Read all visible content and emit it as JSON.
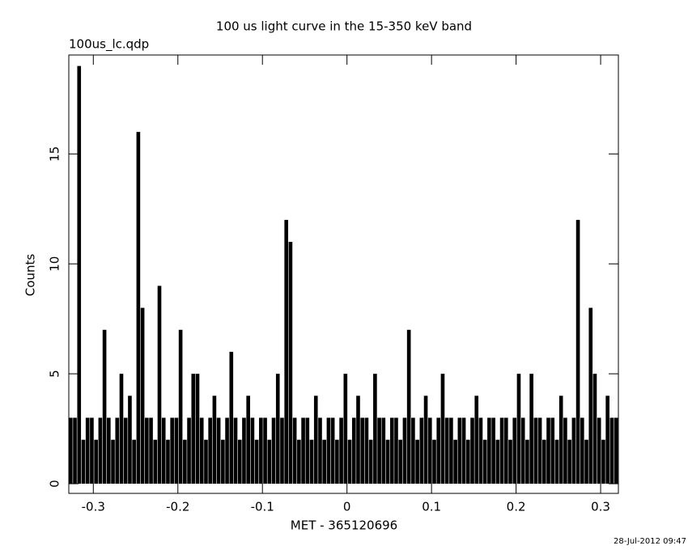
{
  "chart_data": {
    "type": "histogram",
    "title": "100 us light curve in the 15-350 keV band",
    "subtitle": "100us_lc.qdp",
    "x_label": "MET - 365120696",
    "y_label": "Counts",
    "annotation": "28-Jul-2012 09:47",
    "color": "#000000",
    "xlim": [
      -0.329,
      0.321
    ],
    "ylim": [
      -0.44,
      19.5
    ],
    "xticks": [
      -0.3,
      -0.2,
      -0.1,
      0,
      0.1,
      0.2,
      0.3
    ],
    "yticks": [
      0,
      5,
      10,
      15
    ],
    "grid": false,
    "bins": [
      -0.329,
      -0.324,
      -0.319,
      -0.314,
      -0.309,
      -0.304,
      -0.299,
      -0.294,
      -0.289,
      -0.284,
      -0.279,
      -0.274,
      -0.269,
      -0.264,
      -0.259,
      -0.254,
      -0.249,
      -0.244,
      -0.239,
      -0.234,
      -0.229,
      -0.224,
      -0.219,
      -0.214,
      -0.209,
      -0.204,
      -0.199,
      -0.194,
      -0.189,
      -0.184,
      -0.179,
      -0.174,
      -0.169,
      -0.164,
      -0.159,
      -0.154,
      -0.149,
      -0.144,
      -0.139,
      -0.134,
      -0.129,
      -0.124,
      -0.119,
      -0.114,
      -0.109,
      -0.104,
      -0.099,
      -0.094,
      -0.089,
      -0.084,
      -0.079,
      -0.074,
      -0.069,
      -0.064,
      -0.059,
      -0.054,
      -0.049,
      -0.044,
      -0.039,
      -0.034,
      -0.029,
      -0.024,
      -0.019,
      -0.014,
      -0.009,
      -0.004,
      0.001,
      0.006,
      0.011,
      0.016,
      0.021,
      0.026,
      0.031,
      0.036,
      0.041,
      0.046,
      0.051,
      0.056,
      0.061,
      0.066,
      0.071,
      0.076,
      0.081,
      0.086,
      0.091,
      0.096,
      0.101,
      0.106,
      0.111,
      0.116,
      0.121,
      0.126,
      0.131,
      0.136,
      0.141,
      0.146,
      0.151,
      0.156,
      0.161,
      0.166,
      0.171,
      0.176,
      0.181,
      0.186,
      0.191,
      0.196,
      0.201,
      0.206,
      0.211,
      0.216,
      0.221,
      0.226,
      0.231,
      0.236,
      0.241,
      0.246,
      0.251,
      0.256,
      0.261,
      0.266,
      0.271,
      0.276,
      0.281,
      0.286,
      0.291,
      0.296,
      0.301,
      0.306,
      0.311,
      0.316,
      0.321
    ],
    "values": [
      3,
      3,
      19,
      2,
      3,
      3,
      2,
      3,
      7,
      3,
      2,
      3,
      5,
      3,
      4,
      2,
      16,
      8,
      3,
      3,
      2,
      9,
      3,
      2,
      3,
      3,
      7,
      2,
      3,
      5,
      5,
      3,
      2,
      3,
      4,
      3,
      2,
      3,
      6,
      3,
      2,
      3,
      4,
      3,
      2,
      3,
      3,
      2,
      3,
      5,
      3,
      12,
      11,
      3,
      2,
      3,
      3,
      2,
      4,
      3,
      2,
      3,
      3,
      2,
      3,
      5,
      2,
      3,
      4,
      3,
      3,
      2,
      5,
      3,
      3,
      2,
      3,
      3,
      2,
      3,
      7,
      3,
      2,
      3,
      4,
      3,
      2,
      3,
      5,
      3,
      3,
      2,
      3,
      3,
      2,
      3,
      4,
      3,
      2,
      3,
      3,
      2,
      3,
      3,
      2,
      3,
      5,
      3,
      2,
      5,
      3,
      3,
      2,
      3,
      3,
      2,
      4,
      3,
      2,
      3,
      12,
      3,
      2,
      8,
      5,
      3,
      2,
      4,
      3,
      3
    ]
  }
}
